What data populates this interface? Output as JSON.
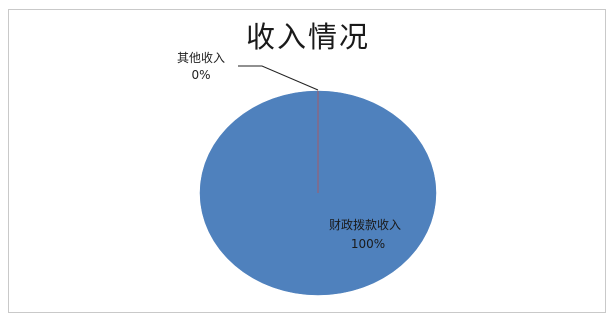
{
  "chart_data": {
    "type": "pie",
    "title": "收入情况",
    "slices": [
      {
        "label": "财政拨款收入",
        "percent_label": "100%",
        "value": 100,
        "color": "#4f81bd"
      },
      {
        "label": "其他收入",
        "percent_label": "0%",
        "value": 0,
        "color": "#c0504d"
      }
    ],
    "legend": "none"
  }
}
